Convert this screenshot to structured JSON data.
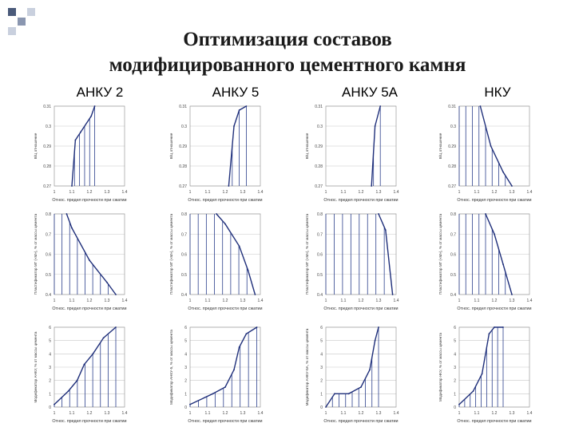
{
  "slide": {
    "title_line1": "Оптимизация составов",
    "title_line2": "модифицированного цементного камня",
    "columns": [
      "АНКУ 2",
      "АНКУ 5",
      "АНКУ 5А",
      "НКУ"
    ],
    "deco_colors": [
      "#4a5a7a",
      "#8a96b0",
      "#c9d0de"
    ]
  },
  "chart_data": [
    {
      "type": "line",
      "column": "АНКУ 2",
      "row": 1,
      "ylabel": "В/Ц отношение",
      "xlabel": "Относ. предел прочности при сжатии",
      "xticks": [
        "1",
        "1.1",
        "1.2",
        "1.3",
        "1.4"
      ],
      "yticks": [
        "0.31",
        "0.3",
        "0.29",
        "0.28",
        "0.27"
      ],
      "xlim": [
        1,
        1.4
      ],
      "ylim": [
        0.27,
        0.31
      ],
      "x": [
        1.1,
        1.12,
        1.15,
        1.21,
        1.23
      ],
      "y": [
        0.27,
        0.293,
        0.297,
        0.305,
        0.31
      ]
    },
    {
      "type": "line",
      "column": "АНКУ 5",
      "row": 1,
      "ylabel": "В/Ц отношение",
      "xlabel": "Относ. предел прочности при сжатии",
      "xticks": [
        "1",
        "1.1",
        "1.2",
        "1.3",
        "1.4"
      ],
      "yticks": [
        "0.31",
        "0.3",
        "0.29",
        "0.28",
        "0.27"
      ],
      "xlim": [
        1,
        1.4
      ],
      "ylim": [
        0.27,
        0.31
      ],
      "x": [
        1.22,
        1.25,
        1.28,
        1.32
      ],
      "y": [
        0.27,
        0.3,
        0.308,
        0.31
      ]
    },
    {
      "type": "line",
      "column": "АНКУ 5А",
      "row": 1,
      "ylabel": "В/Ц отношение",
      "xlabel": "Относ. предел прочности при сжатии",
      "xticks": [
        "1",
        "1.1",
        "1.2",
        "1.3",
        "1.4"
      ],
      "yticks": [
        "0.31",
        "0.3",
        "0.29",
        "0.28",
        "0.27"
      ],
      "xlim": [
        1,
        1.4
      ],
      "ylim": [
        0.27,
        0.31
      ],
      "x": [
        1.26,
        1.28,
        1.31
      ],
      "y": [
        0.27,
        0.3,
        0.31
      ]
    },
    {
      "type": "line",
      "column": "НКУ",
      "row": 1,
      "ylabel": "В/Ц отношение",
      "xlabel": "Относ. предел прочности при сжатии",
      "xticks": [
        "1",
        "1.1",
        "1.2",
        "1.3",
        "1.4"
      ],
      "yticks": [
        "0.31",
        "0.3",
        "0.29",
        "0.28",
        "0.27"
      ],
      "xlim": [
        1,
        1.4
      ],
      "ylim": [
        0.27,
        0.31
      ],
      "x": [
        1.12,
        1.18,
        1.25,
        1.3
      ],
      "y": [
        0.31,
        0.29,
        0.277,
        0.27
      ]
    },
    {
      "type": "line",
      "column": "АНКУ 2",
      "row": 2,
      "ylabel": "Пластификатор МГ («М»), % от массы цемента",
      "xlabel": "Относ. предел прочности при сжатии",
      "xticks": [
        "1",
        "1.1",
        "1.2",
        "1.3",
        "1.4"
      ],
      "yticks": [
        "0.8",
        "0.7",
        "0.6",
        "0.5",
        "0.4"
      ],
      "xlim": [
        1,
        1.4
      ],
      "ylim": [
        0.4,
        0.8
      ],
      "x": [
        1.07,
        1.1,
        1.2,
        1.3,
        1.35
      ],
      "y": [
        0.8,
        0.73,
        0.57,
        0.46,
        0.4
      ]
    },
    {
      "type": "line",
      "column": "АНКУ 5",
      "row": 2,
      "ylabel": "Пластификатор МГ («М»), % от массы цемента",
      "xlabel": "Относ. предел прочности при сжатии",
      "xticks": [
        "1",
        "1.1",
        "1.2",
        "1.3",
        "1.4"
      ],
      "yticks": [
        "0.8",
        "0.7",
        "0.6",
        "0.5",
        "0.4"
      ],
      "xlim": [
        1,
        1.4
      ],
      "ylim": [
        0.4,
        0.8
      ],
      "x": [
        1.15,
        1.2,
        1.28,
        1.33,
        1.37
      ],
      "y": [
        0.8,
        0.75,
        0.64,
        0.52,
        0.4
      ]
    },
    {
      "type": "line",
      "column": "АНКУ 5А",
      "row": 2,
      "ylabel": "Пластификатор МГ («М»), % от массы цемента",
      "xlabel": "Относ. предел прочности при сжатии",
      "xticks": [
        "1",
        "1.1",
        "1.2",
        "1.3",
        "1.4"
      ],
      "yticks": [
        "0.8",
        "0.7",
        "0.6",
        "0.5",
        "0.4"
      ],
      "xlim": [
        1,
        1.4
      ],
      "ylim": [
        0.4,
        0.8
      ],
      "x": [
        1.3,
        1.34,
        1.38
      ],
      "y": [
        0.8,
        0.72,
        0.4
      ]
    },
    {
      "type": "line",
      "column": "НКУ",
      "row": 2,
      "ylabel": "Пластификатор МГ («М»), % от массы цемента",
      "xlabel": "Относ. предел прочности при сжатии",
      "xticks": [
        "1",
        "1.1",
        "1.2",
        "1.3",
        "1.4"
      ],
      "yticks": [
        "0.8",
        "0.7",
        "0.6",
        "0.5",
        "0.4"
      ],
      "xlim": [
        1,
        1.4
      ],
      "ylim": [
        0.4,
        0.8
      ],
      "x": [
        1.15,
        1.2,
        1.25,
        1.3
      ],
      "y": [
        0.8,
        0.7,
        0.55,
        0.4
      ]
    },
    {
      "type": "line",
      "column": "АНКУ 2",
      "row": 3,
      "ylabel": "Модификатор АНКУ, % от массы цемента",
      "xlabel": "Относ. предел прочности при сжатии",
      "xticks": [
        "1",
        "1.1",
        "1.2",
        "1.3",
        "1.4"
      ],
      "yticks": [
        "0",
        "1",
        "2",
        "3",
        "4",
        "5",
        "6"
      ],
      "xlim": [
        1,
        1.4
      ],
      "ylim": [
        0,
        6
      ],
      "x": [
        1,
        1.08,
        1.13,
        1.17,
        1.22,
        1.28,
        1.35
      ],
      "y": [
        0.2,
        1.2,
        2,
        3.2,
        4,
        5.2,
        6
      ]
    },
    {
      "type": "line",
      "column": "АНКУ 5",
      "row": 3,
      "ylabel": "Модификатор АНКУ-5, % от массы цемента",
      "xlabel": "Относ. предел прочности при сжатии",
      "xticks": [
        "1",
        "1.1",
        "1.2",
        "1.3",
        "1.4"
      ],
      "yticks": [
        "0",
        "1",
        "2",
        "3",
        "4",
        "5",
        "6"
      ],
      "xlim": [
        1,
        1.4
      ],
      "ylim": [
        0,
        6
      ],
      "x": [
        1,
        1.13,
        1.2,
        1.25,
        1.28,
        1.32,
        1.38
      ],
      "y": [
        0.2,
        1,
        1.5,
        2.8,
        4.5,
        5.5,
        6
      ]
    },
    {
      "type": "line",
      "column": "АНКУ 5А",
      "row": 3,
      "ylabel": "Модификатор АНКУ-5А, % от массы цемента",
      "xlabel": "Относ. предел прочности при сжатии",
      "xticks": [
        "1",
        "1.1",
        "1.2",
        "1.3",
        "1.4"
      ],
      "yticks": [
        "0",
        "1",
        "2",
        "3",
        "4",
        "5",
        "6"
      ],
      "xlim": [
        1,
        1.4
      ],
      "ylim": [
        0,
        6
      ],
      "x": [
        1,
        1.05,
        1.13,
        1.2,
        1.25,
        1.28,
        1.3
      ],
      "y": [
        0,
        1,
        1,
        1.5,
        2.8,
        5,
        6
      ]
    },
    {
      "type": "line",
      "column": "НКУ",
      "row": 3,
      "ylabel": "Модификатор НКУ, % от массы цемента",
      "xlabel": "Относ. предел прочности при сжатии",
      "xticks": [
        "1",
        "1.1",
        "1.2",
        "1.3",
        "1.4"
      ],
      "yticks": [
        "0",
        "1",
        "2",
        "3",
        "4",
        "5",
        "6"
      ],
      "xlim": [
        1,
        1.4
      ],
      "ylim": [
        0,
        6
      ],
      "x": [
        1,
        1.08,
        1.13,
        1.17,
        1.2,
        1.25
      ],
      "y": [
        0.2,
        1.2,
        2.5,
        5.5,
        6,
        6
      ]
    }
  ]
}
